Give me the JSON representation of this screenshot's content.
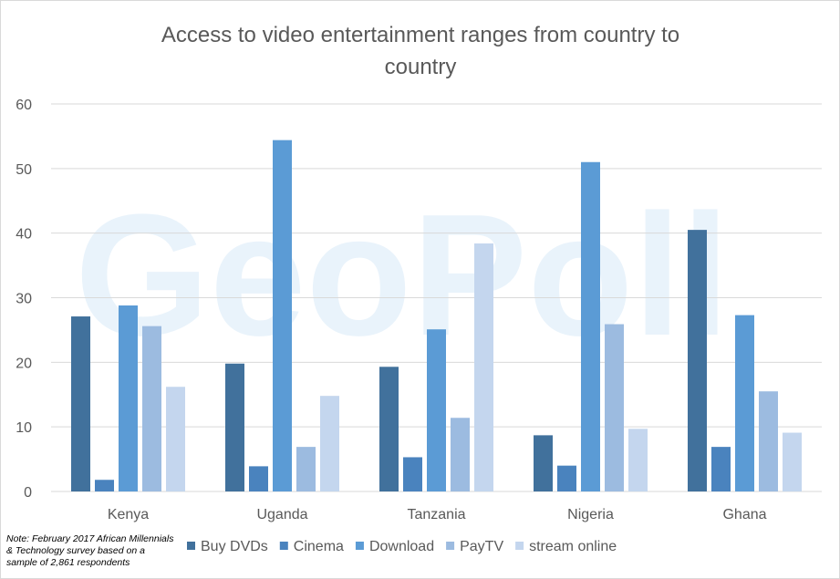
{
  "watermark": "GeoPoll",
  "note": [
    "Note: February 2017 African Millennials",
    "& Technology survey based on a",
    "sample of 2,861 respondents"
  ],
  "chart_data": {
    "type": "bar",
    "title": "Access to video entertainment ranges from country to country",
    "title_lines": [
      "Access to video entertainment ranges from country to",
      "country"
    ],
    "categories": [
      "Kenya",
      "Uganda",
      "Tanzania",
      "Nigeria",
      "Ghana"
    ],
    "ylim": [
      0,
      60
    ],
    "yticks": [
      0,
      10,
      20,
      30,
      40,
      50,
      60
    ],
    "grid": true,
    "legend_position": "bottom",
    "series": [
      {
        "name": "Buy DVDs",
        "color": "#41719c",
        "values": [
          27.1,
          19.8,
          19.3,
          8.7,
          40.5
        ]
      },
      {
        "name": "Cinema",
        "color": "#4a83be",
        "values": [
          1.8,
          3.9,
          5.3,
          4.0,
          6.9
        ]
      },
      {
        "name": "Download",
        "color": "#5b9bd5",
        "values": [
          28.8,
          54.4,
          25.1,
          51.0,
          27.3
        ]
      },
      {
        "name": "PayTV",
        "color": "#9cbbe0",
        "values": [
          25.6,
          6.9,
          11.4,
          25.9,
          15.5
        ]
      },
      {
        "name": "stream online",
        "color": "#c4d6ee",
        "values": [
          16.2,
          14.8,
          38.4,
          9.7,
          9.1
        ]
      }
    ]
  }
}
